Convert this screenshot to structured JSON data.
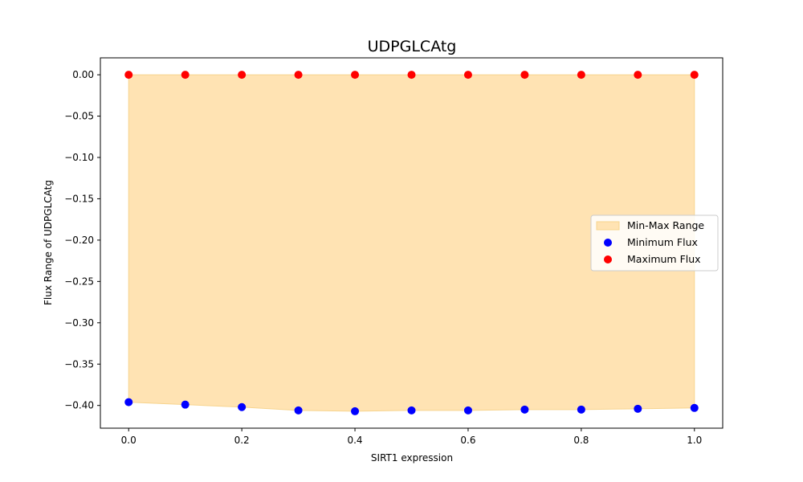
{
  "chart_data": {
    "type": "scatter",
    "title": "UDPGLCAtg",
    "xlabel": "SIRT1 expression",
    "ylabel": "Flux Range of UDPGLCAtg",
    "x": [
      0.0,
      0.1,
      0.2,
      0.3,
      0.4,
      0.5,
      0.6,
      0.7,
      0.8,
      0.9,
      1.0
    ],
    "xlim": [
      -0.05,
      1.05
    ],
    "ylim": [
      -0.4275,
      0.0205
    ],
    "x_ticks": [
      0.0,
      0.2,
      0.4,
      0.6,
      0.8,
      1.0
    ],
    "x_tick_labels": [
      "0.0",
      "0.2",
      "0.4",
      "0.6",
      "0.8",
      "1.0"
    ],
    "y_ticks": [
      0.0,
      -0.05,
      -0.1,
      -0.15,
      -0.2,
      -0.25,
      -0.3,
      -0.35,
      -0.4
    ],
    "y_tick_labels": [
      "0.00",
      "−0.05",
      "−0.10",
      "−0.15",
      "−0.20",
      "−0.25",
      "−0.30",
      "−0.35",
      "−0.40"
    ],
    "grid": false,
    "legend_position": "center-right",
    "series": [
      {
        "name": "Min-Max Range",
        "kind": "fill_between",
        "color": "#FFE3B3",
        "edge_color": "#F7D48E"
      },
      {
        "name": "Minimum Flux",
        "kind": "scatter",
        "color": "#0000FF",
        "values": [
          -0.396,
          -0.399,
          -0.402,
          -0.406,
          -0.407,
          -0.406,
          -0.406,
          -0.405,
          -0.405,
          -0.404,
          -0.403
        ]
      },
      {
        "name": "Maximum Flux",
        "kind": "scatter",
        "color": "#FF0000",
        "values": [
          0.0,
          0.0,
          0.0,
          0.0,
          0.0,
          0.0,
          0.0,
          0.0,
          0.0,
          0.0,
          0.0
        ]
      }
    ]
  }
}
